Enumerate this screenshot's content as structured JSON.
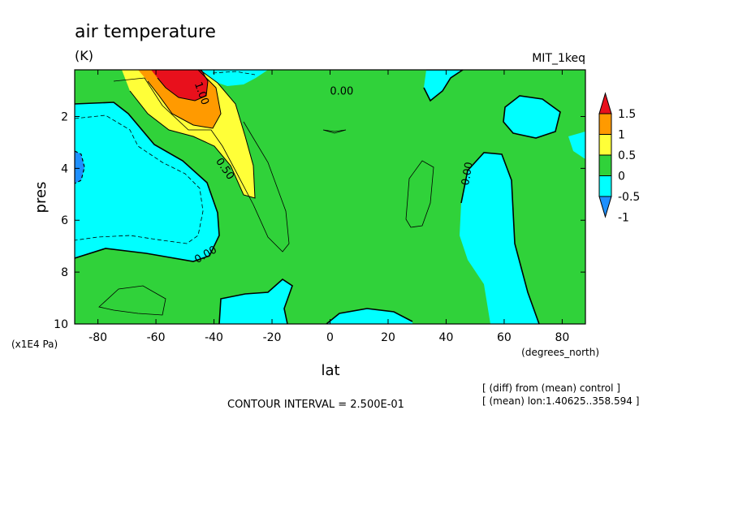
{
  "chart_data": {
    "type": "heatmap",
    "title": "air temperature",
    "units": "(K)",
    "model": "MIT_1keq",
    "xlabel": "lat",
    "xunits": "(degrees_north)",
    "ylabel": "pres",
    "yunits": "(x1E4 Pa)",
    "xlim": [
      -88,
      88
    ],
    "ylim": [
      10,
      0.2
    ],
    "x_ticks": [
      "-80",
      "-60",
      "-40",
      "-20",
      "0",
      "20",
      "40",
      "60",
      "80"
    ],
    "x_tick_values": [
      -80,
      -60,
      -40,
      -20,
      0,
      20,
      40,
      60,
      80
    ],
    "y_ticks": [
      "2",
      "4",
      "6",
      "8",
      "10"
    ],
    "y_tick_values": [
      2,
      4,
      6,
      8,
      10
    ],
    "contour_interval": "CONTOUR INTERVAL = 2.500E-01",
    "notes": [
      "[ (diff) from (mean) control ]",
      "[ (mean) lon:1.40625..358.594 ]"
    ],
    "contour_labels": [
      {
        "text": "1.00",
        "x": -44,
        "y": 1.1,
        "rot": 70
      },
      {
        "text": "0.00",
        "x": 4,
        "y": 1.0,
        "rot": 0
      },
      {
        "text": "0.50",
        "x": -36,
        "y": 4.0,
        "rot": 55
      },
      {
        "text": "0.00",
        "x": 47,
        "y": 4.2,
        "rot": -80
      },
      {
        "text": "0.00",
        "x": -43,
        "y": 7.3,
        "rot": -30
      }
    ],
    "colorbar": {
      "labels": [
        "1.5",
        "1",
        "0.5",
        "0",
        "-0.5",
        "-1"
      ],
      "colors": [
        "#e8101c",
        "#ff9a00",
        "#ffff38",
        "#30d23a",
        "#00ffff",
        "#1e90ff"
      ]
    },
    "regions": {
      "green_background": "#30d23a",
      "cyan_low": "#00ffff",
      "blue_min": "#1e90ff",
      "yellow": "#ffff38",
      "orange": "#ff9a00",
      "red_max": "#e8101c"
    }
  }
}
